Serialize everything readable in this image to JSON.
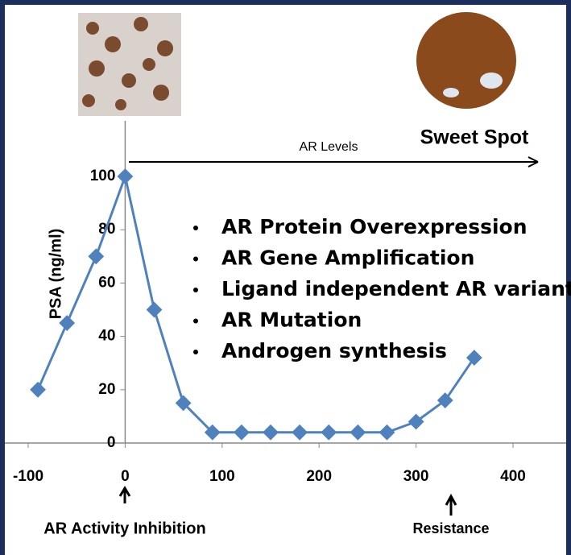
{
  "chart_data": {
    "type": "line",
    "y_label": "PSA (ng/ml)",
    "annotations": [
      "AR Levels",
      "Sweet Spot",
      "AR Activity Inhibition",
      "Resistance"
    ],
    "bullets": [
      "AR Protein Overexpression",
      "AR Gene Amplification",
      "Ligand independent AR variants",
      "AR Mutation",
      "Androgen synthesis"
    ],
    "x": [
      -90,
      -60,
      -30,
      0,
      30,
      60,
      90,
      120,
      150,
      180,
      210,
      240,
      270,
      300,
      330,
      360
    ],
    "values": [
      20,
      45,
      70,
      100,
      50,
      15,
      4,
      4,
      4,
      4,
      4,
      4,
      4,
      8,
      16,
      32
    ],
    "color": "#4f81bd",
    "xlim": [
      -100,
      400
    ],
    "xticks": [
      -100,
      0,
      100,
      200,
      300,
      400
    ],
    "ylim": [
      0,
      100
    ],
    "yticks": [
      0,
      20,
      40,
      60,
      80,
      100
    ]
  }
}
